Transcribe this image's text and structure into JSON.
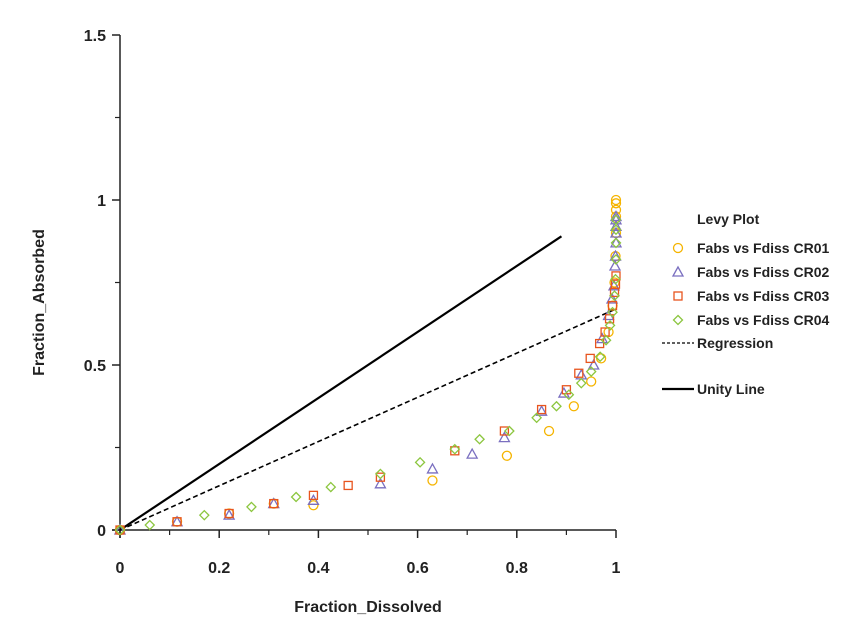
{
  "chart_data": {
    "type": "scatter",
    "title": "",
    "xlabel": "Fraction_Dissolved",
    "ylabel": "Fraction_Absorbed",
    "xlim": [
      0,
      1.0
    ],
    "ylim": [
      0,
      1.5
    ],
    "x_ticks": [
      {
        "value": 0,
        "label": "0"
      },
      {
        "value": 0.2,
        "label": "0.2"
      },
      {
        "value": 0.4,
        "label": "0.4"
      },
      {
        "value": 0.6,
        "label": "0.6"
      },
      {
        "value": 0.8,
        "label": "0.8"
      },
      {
        "value": 1.0,
        "label": "1"
      }
    ],
    "y_ticks": [
      {
        "value": 0,
        "label": "0"
      },
      {
        "value": 0.5,
        "label": "0.5"
      },
      {
        "value": 1.0,
        "label": "1"
      },
      {
        "value": 1.5,
        "label": "1.5"
      }
    ],
    "y_minor_ticks": [
      0.25,
      0.75,
      1.25
    ],
    "x_minor_ticks": [
      0.1,
      0.3,
      0.5,
      0.7,
      0.9
    ],
    "grid": false,
    "legend": {
      "position": "right",
      "title": "Levy Plot",
      "entries": [
        {
          "label": "Fabs vs Fdiss CR01",
          "marker": "circle",
          "color": "#f5b400"
        },
        {
          "label": "Fabs vs Fdiss CR02",
          "marker": "triangle",
          "color": "#7a6fc0"
        },
        {
          "label": "Fabs vs Fdiss CR03",
          "marker": "square",
          "color": "#e8541e"
        },
        {
          "label": "Fabs vs Fdiss CR04",
          "marker": "diamond",
          "color": "#8cc63f"
        },
        {
          "label": "Regression",
          "marker": "dashed-line",
          "color": "#000000"
        },
        {
          "label": "Unity Line",
          "marker": "solid-line",
          "color": "#000000"
        }
      ]
    },
    "series": [
      {
        "name": "Fabs vs Fdiss CR01",
        "marker": "circle",
        "color": "#f5b400",
        "points": [
          [
            0,
            0
          ],
          [
            0.115,
            0.025
          ],
          [
            0.22,
            0.05
          ],
          [
            0.31,
            0.08
          ],
          [
            0.39,
            0.075
          ],
          [
            0.63,
            0.15
          ],
          [
            0.78,
            0.225
          ],
          [
            0.865,
            0.3
          ],
          [
            0.915,
            0.375
          ],
          [
            0.95,
            0.45
          ],
          [
            0.97,
            0.52
          ],
          [
            0.985,
            0.6
          ],
          [
            0.993,
            0.68
          ],
          [
            0.997,
            0.75
          ],
          [
            0.999,
            0.83
          ],
          [
            1.0,
            0.9
          ],
          [
            1.0,
            0.95
          ],
          [
            1.0,
            0.97
          ],
          [
            1.0,
            0.99
          ],
          [
            1.0,
            1.0
          ]
        ]
      },
      {
        "name": "Fabs vs Fdiss CR02",
        "marker": "triangle",
        "color": "#7a6fc0",
        "points": [
          [
            0,
            0
          ],
          [
            0.115,
            0.025
          ],
          [
            0.22,
            0.045
          ],
          [
            0.31,
            0.08
          ],
          [
            0.39,
            0.09
          ],
          [
            0.525,
            0.14
          ],
          [
            0.63,
            0.185
          ],
          [
            0.71,
            0.23
          ],
          [
            0.775,
            0.28
          ],
          [
            0.85,
            0.36
          ],
          [
            0.895,
            0.415
          ],
          [
            0.93,
            0.47
          ],
          [
            0.955,
            0.5
          ],
          [
            0.972,
            0.58
          ],
          [
            0.985,
            0.65
          ],
          [
            0.992,
            0.7
          ],
          [
            0.996,
            0.74
          ],
          [
            0.998,
            0.8
          ],
          [
            0.999,
            0.83
          ],
          [
            1.0,
            0.87
          ],
          [
            1.0,
            0.9
          ],
          [
            1.0,
            0.92
          ],
          [
            1.0,
            0.94
          ],
          [
            1.0,
            0.95
          ]
        ]
      },
      {
        "name": "Fabs vs Fdiss CR03",
        "marker": "square",
        "color": "#e8541e",
        "points": [
          [
            0,
            0
          ],
          [
            0.115,
            0.025
          ],
          [
            0.22,
            0.05
          ],
          [
            0.31,
            0.08
          ],
          [
            0.39,
            0.105
          ],
          [
            0.46,
            0.135
          ],
          [
            0.525,
            0.16
          ],
          [
            0.675,
            0.24
          ],
          [
            0.775,
            0.3
          ],
          [
            0.85,
            0.365
          ],
          [
            0.9,
            0.425
          ],
          [
            0.925,
            0.475
          ],
          [
            0.948,
            0.52
          ],
          [
            0.967,
            0.565
          ],
          [
            0.978,
            0.6
          ],
          [
            0.987,
            0.64
          ],
          [
            0.993,
            0.68
          ],
          [
            0.997,
            0.72
          ],
          [
            0.999,
            0.745
          ],
          [
            1.0,
            0.77
          ]
        ]
      },
      {
        "name": "Fabs vs Fdiss CR04",
        "marker": "diamond",
        "color": "#8cc63f",
        "points": [
          [
            0,
            0
          ],
          [
            0.06,
            0.015
          ],
          [
            0.17,
            0.045
          ],
          [
            0.265,
            0.07
          ],
          [
            0.355,
            0.1
          ],
          [
            0.425,
            0.13
          ],
          [
            0.525,
            0.17
          ],
          [
            0.605,
            0.205
          ],
          [
            0.675,
            0.245
          ],
          [
            0.725,
            0.275
          ],
          [
            0.785,
            0.3
          ],
          [
            0.84,
            0.34
          ],
          [
            0.88,
            0.375
          ],
          [
            0.905,
            0.41
          ],
          [
            0.93,
            0.445
          ],
          [
            0.95,
            0.48
          ],
          [
            0.968,
            0.525
          ],
          [
            0.98,
            0.575
          ],
          [
            0.988,
            0.62
          ],
          [
            0.993,
            0.66
          ],
          [
            0.997,
            0.71
          ],
          [
            0.999,
            0.76
          ],
          [
            1.0,
            0.82
          ],
          [
            1.0,
            0.87
          ],
          [
            1.0,
            0.91
          ],
          [
            1.0,
            0.94
          ]
        ]
      }
    ],
    "lines": [
      {
        "name": "Regression",
        "style": "dashed",
        "color": "#000000",
        "points": [
          [
            0,
            0
          ],
          [
            1.0,
            0.67
          ]
        ]
      },
      {
        "name": "Unity Line",
        "style": "solid",
        "color": "#000000",
        "points": [
          [
            0,
            0
          ],
          [
            0.89,
            0.89
          ]
        ]
      }
    ]
  }
}
